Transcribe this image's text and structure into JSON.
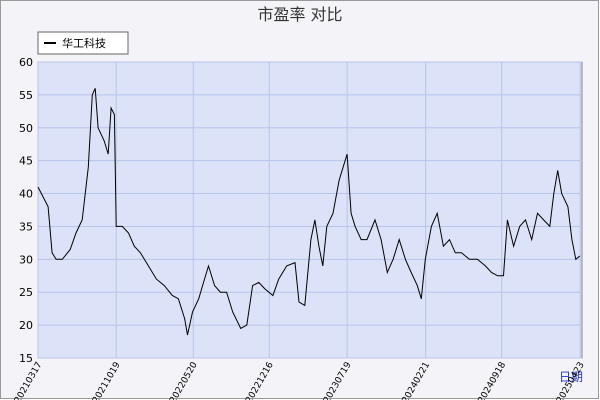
{
  "chart_data": {
    "type": "line",
    "title": "市盈率  对比",
    "x_label": "日期",
    "x": [
      "20210317",
      "20210414",
      "20210425",
      "20210506",
      "20210523",
      "20210614",
      "20210630",
      "20210717",
      "20210803",
      "20210814",
      "20210822",
      "20210830",
      "20210916",
      "20210927",
      "20211005",
      "20211014",
      "20211019",
      "20211105",
      "20211122",
      "20211208",
      "20211225",
      "20220116",
      "20220207",
      "20220301",
      "20220323",
      "20220409",
      "20220426",
      "20220504",
      "20220518",
      "20220604",
      "20220620",
      "20220701",
      "20220718",
      "20220803",
      "20220820",
      "20220906",
      "20220928",
      "20221015",
      "20221031",
      "20221117",
      "20221204",
      "20221226",
      "20230111",
      "20230202",
      "20230225",
      "20230308",
      "20230324",
      "20230410",
      "20230421",
      "20230502",
      "20230513",
      "20230524",
      "20230610",
      "20230627",
      "20230708",
      "20230719",
      "20230730",
      "20230810",
      "20230827",
      "20230912",
      "20231004",
      "20231021",
      "20231107",
      "20231123",
      "20231210",
      "20231227",
      "20240112",
      "20240129",
      "20240209",
      "20240220",
      "20240308",
      "20240324",
      "20240410",
      "20240427",
      "20240513",
      "20240530",
      "20240621",
      "20240713",
      "20240804",
      "20240821",
      "20240907",
      "20240923",
      "20241004",
      "20241021",
      "20241107",
      "20241123",
      "20241210",
      "20241226",
      "20250112",
      "20250129",
      "20250209",
      "20250220",
      "20250303",
      "20250320",
      "20250331",
      "20250411",
      "20250422"
    ],
    "series": [
      {
        "name": "华工科技",
        "color": "#000000",
        "values": [
          41,
          38,
          31,
          30,
          30,
          31.5,
          34,
          36,
          44,
          55,
          56,
          50,
          48,
          46,
          53,
          52,
          35,
          35,
          34,
          32,
          31,
          29,
          27,
          26,
          24.5,
          24,
          21,
          18.5,
          22,
          24,
          27,
          29,
          26,
          25,
          25,
          22,
          19.5,
          20,
          26,
          26.5,
          25.5,
          24.5,
          27,
          29,
          29.5,
          23.5,
          23,
          33,
          36,
          32,
          29,
          35,
          37,
          42,
          44,
          46,
          37,
          35,
          33,
          33,
          36,
          33,
          28,
          30,
          33,
          30,
          28,
          26,
          24,
          30,
          35,
          37,
          32,
          33,
          31,
          31,
          30,
          30,
          29,
          28,
          27.5,
          27.5,
          36,
          32,
          35,
          36,
          33,
          37,
          36,
          35,
          40,
          43.5,
          40,
          38,
          33,
          30,
          30.5
        ]
      }
    ],
    "xlim": [
      "20210317",
      "20250428"
    ],
    "xticks": [
      "20210317",
      "20211019",
      "20220520",
      "20221216",
      "20230719",
      "20240221",
      "20240918",
      "20250423"
    ],
    "ylim": [
      15,
      60
    ],
    "yticks": [
      15,
      20,
      25,
      30,
      35,
      40,
      45,
      50,
      55,
      60
    ],
    "grid": true,
    "legend": "upper left"
  }
}
